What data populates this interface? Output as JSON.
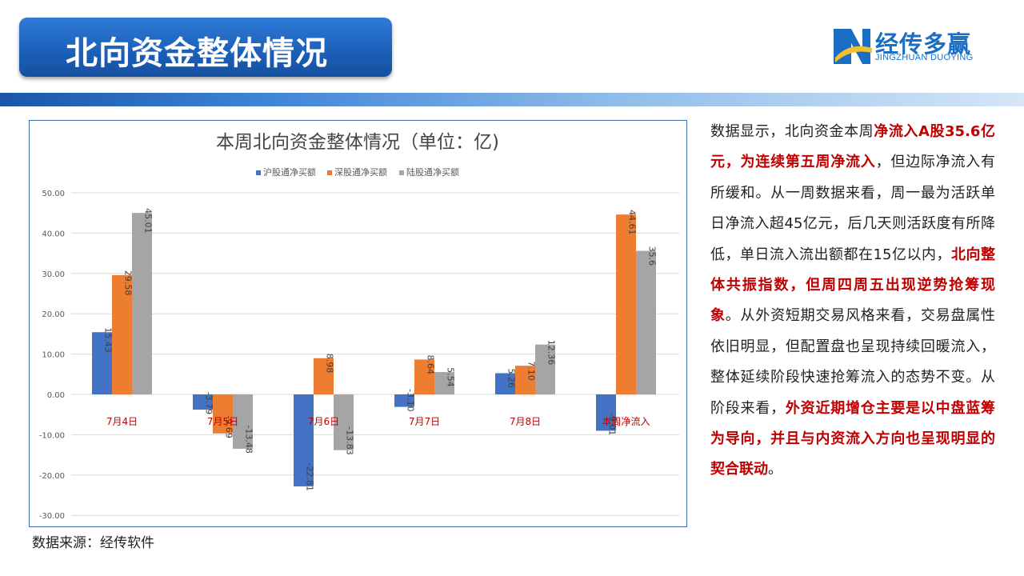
{
  "header": {
    "title": "北向资金整体情况",
    "logo_text": "经传多赢",
    "logo_sub": "JINGZHUAN DUOYING"
  },
  "colors": {
    "series1": "#4472C4",
    "series2": "#ED7D31",
    "series3": "#A5A5A5",
    "category_label": "#c00000",
    "highlight": "#c00000"
  },
  "chart_data": {
    "type": "bar",
    "title": "本周北向资金整体情况（单位：亿)",
    "categories": [
      "7月4日",
      "7月5日",
      "7月6日",
      "7月7日",
      "7月8日",
      "本周净流入"
    ],
    "series": [
      {
        "name": "沪股通净买额",
        "values": [
          15.43,
          -3.79,
          -22.81,
          -3.1,
          5.26,
          -9.01
        ],
        "labels": [
          "15.43",
          "-3.79",
          "-22.81",
          "-3.10",
          "5.26",
          "-9.01"
        ]
      },
      {
        "name": "深股通净买额",
        "values": [
          29.58,
          -9.69,
          8.98,
          8.64,
          7.1,
          44.61
        ],
        "labels": [
          "29.58",
          "-9.69",
          "8.98",
          "8.64",
          "7.10",
          "44.61"
        ]
      },
      {
        "name": "陆股通净买额",
        "values": [
          45.01,
          -13.48,
          -13.83,
          5.54,
          12.36,
          35.6
        ],
        "labels": [
          "45.01",
          "-13.48",
          "-13.83",
          "5.54",
          "12.36",
          "35.6"
        ]
      }
    ],
    "yticks": [
      "50.00",
      "40.00",
      "30.00",
      "20.00",
      "10.00",
      "0.00",
      "-10.00",
      "-20.00",
      "-30.00"
    ],
    "ylim": [
      -30,
      50
    ],
    "grid": true,
    "legend": "top-center"
  },
  "source": "数据来源：经传软件",
  "paragraph": [
    {
      "text": "数据显示，北向资金本周",
      "hl": false
    },
    {
      "text": "净流入A股35.6亿元，为连续第五周净流入",
      "hl": true
    },
    {
      "text": "，但边际净流入有所缓和。从一周数据来看，周一最为活跃单日净流入超45亿元，后几天则活跃度有所降低，单日流入流出额都在15亿以内，",
      "hl": false
    },
    {
      "text": "北向整体共振指数，但周四周五出现逆势抢筹现象",
      "hl": true
    },
    {
      "text": "。从外资短期交易风格来看，交易盘属性依旧明显，但配置盘也呈现持续回暖流入，整体延续阶段快速抢筹流入的态势不变。从阶段来看，",
      "hl": false
    },
    {
      "text": "外资近期增仓主要是以中盘蓝筹为导向，并且与内资流入方向也呈现明显的契合联动",
      "hl": true
    },
    {
      "text": "。",
      "hl": false
    }
  ]
}
